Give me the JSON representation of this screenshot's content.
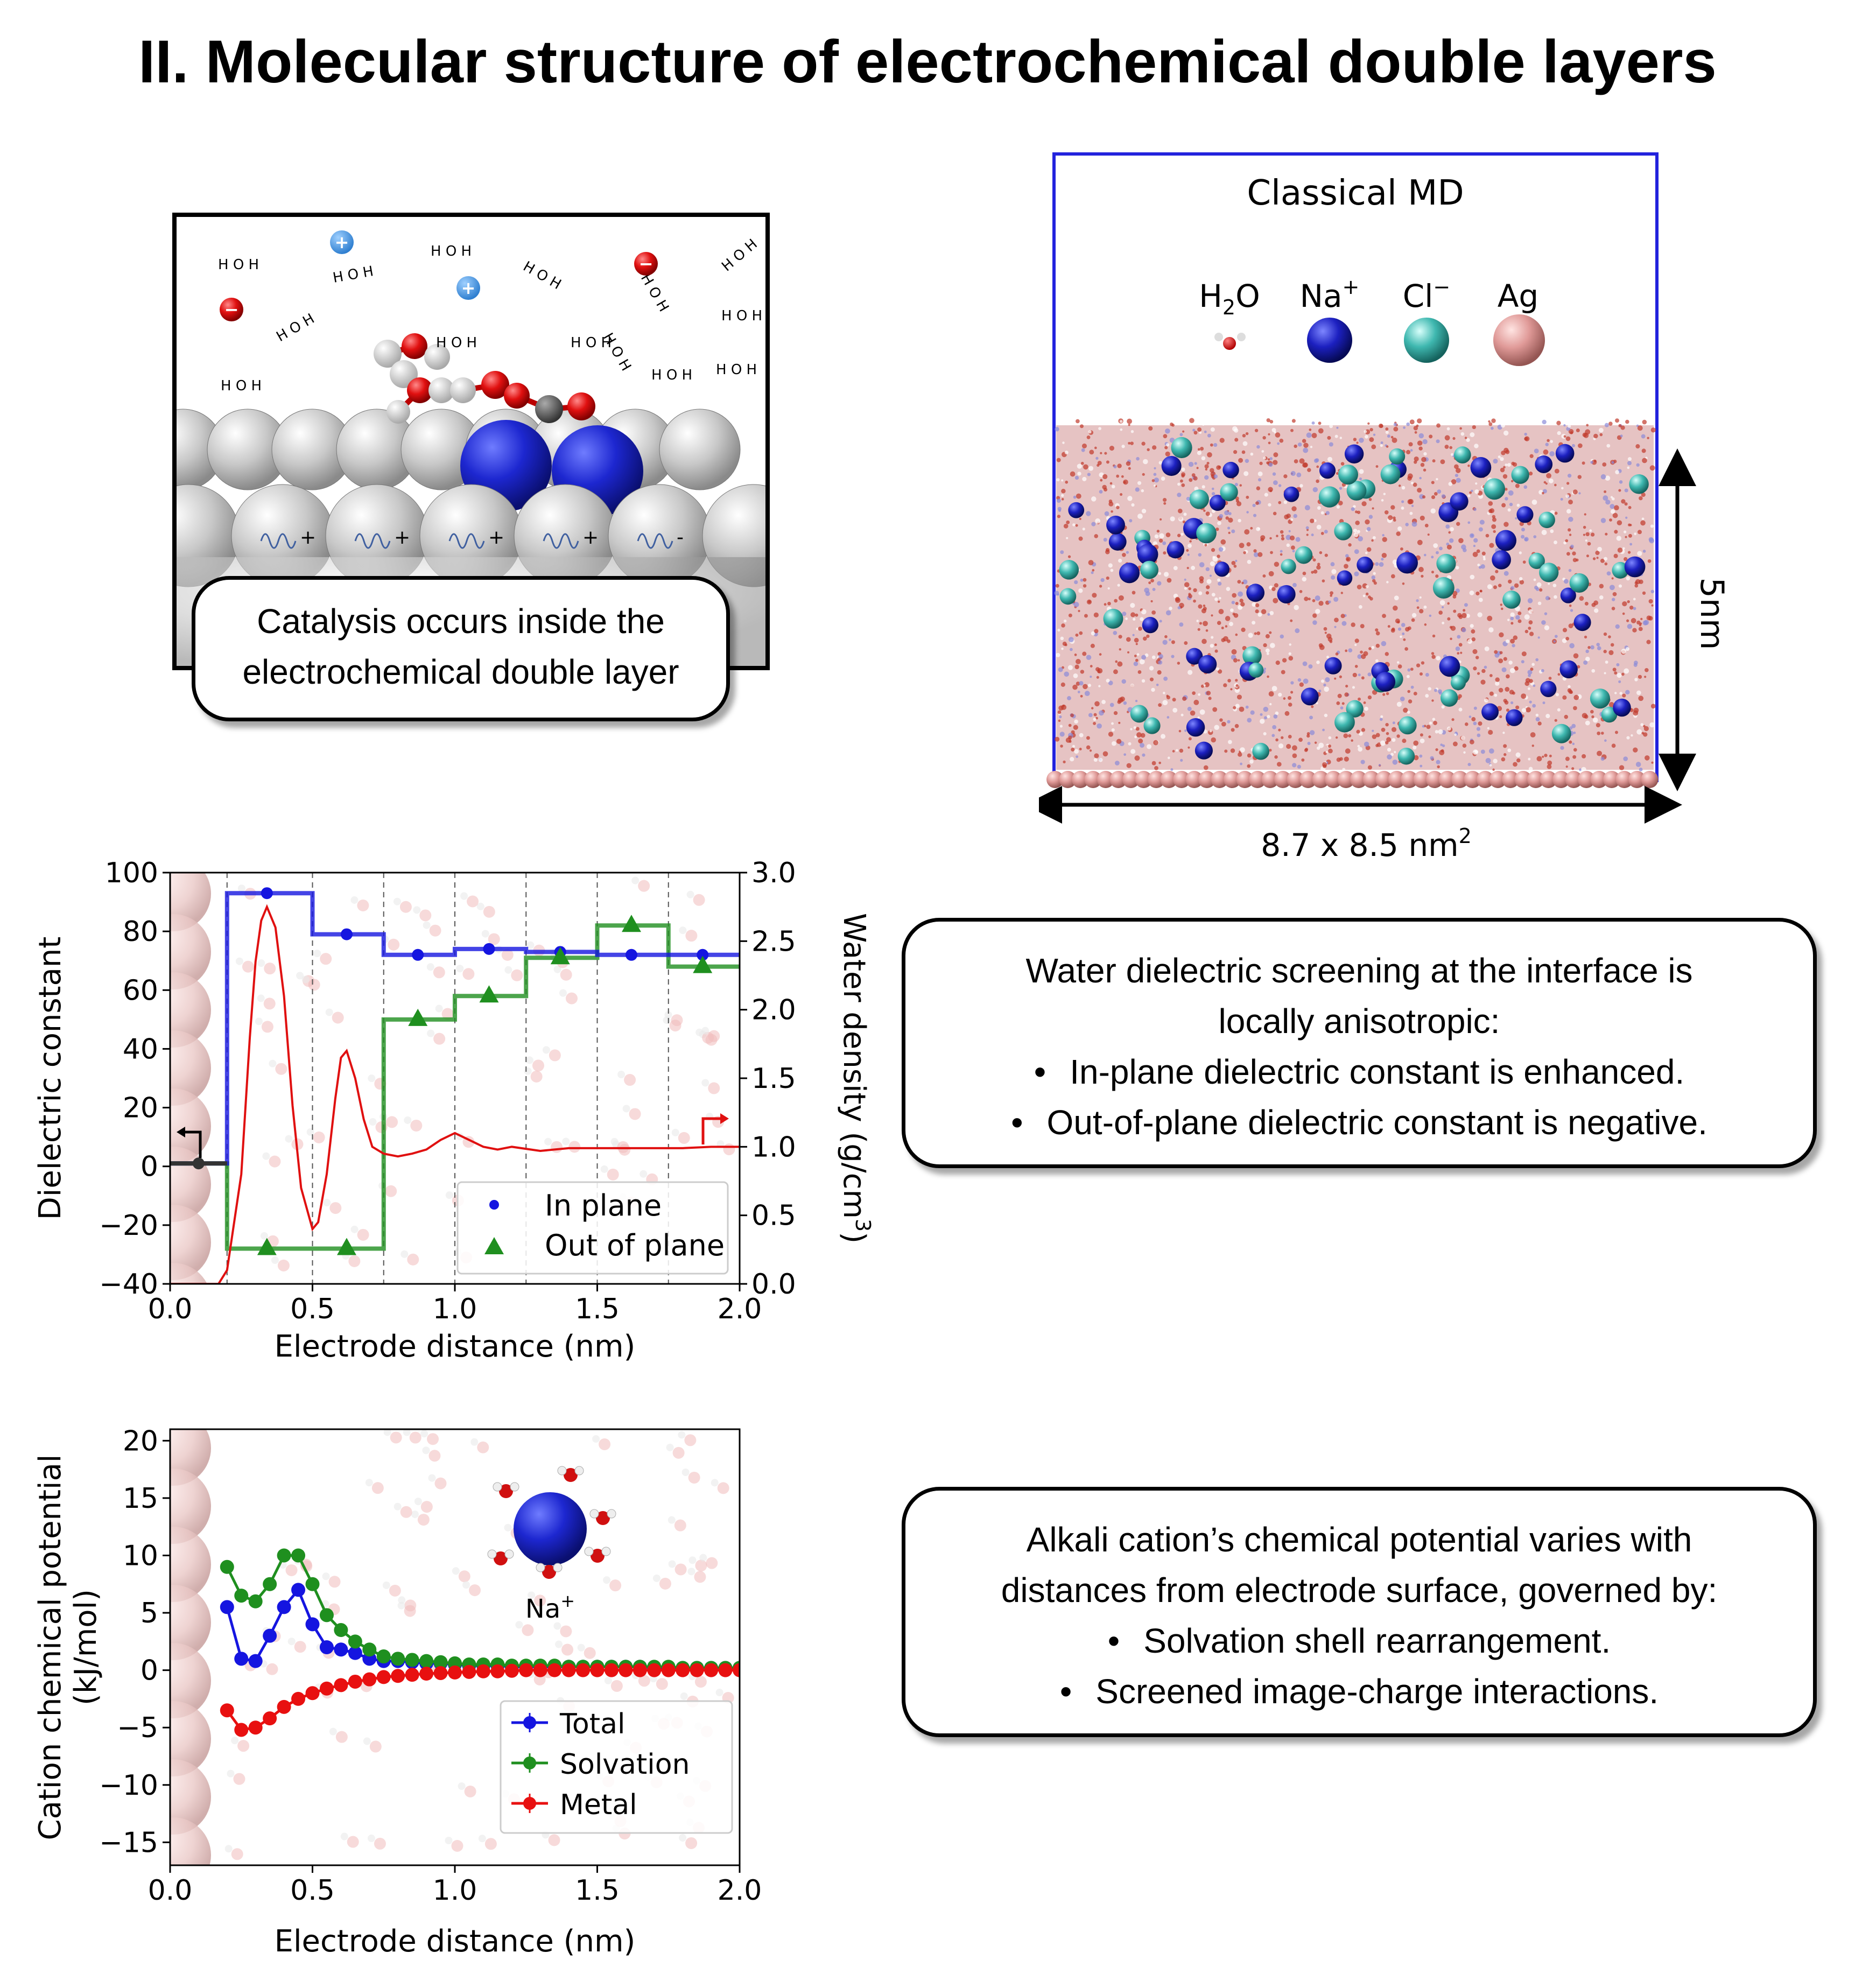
{
  "title": "II. Molecular structure of electrochemical double layers",
  "colors": {
    "in_plane": "#1515e0",
    "out_of_plane": "#1f8f1f",
    "density": "#e01010",
    "total": "#1515e0",
    "solvation": "#1f8f1f",
    "metal": "#e81010",
    "na": "#1c20c0",
    "cl": "#3fb8b0",
    "ag": "#e09a98",
    "box": "#2222dd"
  },
  "catalysis_panel": {
    "callout_text": [
      "Catalysis occurs inside the",
      "electrochemical double layer"
    ]
  },
  "md_panel": {
    "title": "Classical MD",
    "legend": [
      {
        "label": "H",
        "sub": "2",
        "tail": "O",
        "icon": "water"
      },
      {
        "label": "Na",
        "sup": "+",
        "icon": "na-sphere"
      },
      {
        "label": "Cl",
        "sup": "−",
        "icon": "cl-sphere"
      },
      {
        "label": "Ag",
        "icon": "ag-sphere"
      }
    ],
    "height_label": "5nm",
    "area_label": "8.7 x 8.5 nm",
    "area_sup": "2"
  },
  "chart_data": [
    {
      "type": "line",
      "xlabel": "Electrode distance (nm)",
      "ylabel": "Dielectric constant",
      "y2label": "Water density (g/cm",
      "y2label_sup": "3",
      "y2label_tail": ")",
      "xlim": [
        0.0,
        2.0
      ],
      "ylim": [
        -40,
        100
      ],
      "y2lim": [
        0.0,
        3.0
      ],
      "x_ticks": [
        "0.0",
        "0.5",
        "1.0",
        "1.5",
        "2.0"
      ],
      "y_ticks": [
        "100",
        "80",
        "60",
        "40",
        "20",
        "0",
        "−20",
        "−40"
      ],
      "y2_ticks": [
        "3.0",
        "2.5",
        "2.0",
        "1.5",
        "1.0",
        "0.5",
        "0.0"
      ],
      "step_edges": [
        0.0,
        0.2,
        0.5,
        0.75,
        1.0,
        1.25,
        1.5,
        1.75,
        2.0
      ],
      "series": [
        {
          "name": "In plane",
          "marker": "circle",
          "step_values": [
            1,
            93,
            79,
            72,
            74,
            73,
            72,
            72
          ],
          "points": [
            [
              0.1,
              1
            ],
            [
              0.34,
              93
            ],
            [
              0.62,
              79
            ],
            [
              0.87,
              72
            ],
            [
              1.12,
              74
            ],
            [
              1.37,
              73
            ],
            [
              1.62,
              72
            ],
            [
              1.87,
              72
            ]
          ]
        },
        {
          "name": "Out of plane",
          "marker": "triangle",
          "step_values": [
            1,
            -28,
            -28,
            50,
            58,
            71,
            82,
            68
          ],
          "points": [
            [
              0.34,
              -28
            ],
            [
              0.62,
              -28
            ],
            [
              0.87,
              50
            ],
            [
              1.12,
              58
            ],
            [
              1.37,
              71
            ],
            [
              1.62,
              82
            ],
            [
              1.87,
              68
            ]
          ]
        },
        {
          "axis": "right",
          "x": [
            0.0,
            0.17,
            0.2,
            0.25,
            0.28,
            0.3,
            0.32,
            0.34,
            0.37,
            0.4,
            0.43,
            0.46,
            0.5,
            0.52,
            0.55,
            0.58,
            0.6,
            0.62,
            0.65,
            0.68,
            0.71,
            0.75,
            0.8,
            0.85,
            0.9,
            0.95,
            1.0,
            1.05,
            1.1,
            1.15,
            1.2,
            1.3,
            1.4,
            1.5,
            1.6,
            1.7,
            1.8,
            1.9,
            2.0
          ],
          "y": [
            0.0,
            0.0,
            0.1,
            0.8,
            1.8,
            2.35,
            2.65,
            2.75,
            2.6,
            2.1,
            1.3,
            0.7,
            0.4,
            0.45,
            0.8,
            1.35,
            1.65,
            1.7,
            1.5,
            1.2,
            1.0,
            0.95,
            0.93,
            0.95,
            0.98,
            1.05,
            1.1,
            1.05,
            1.0,
            0.98,
            1.0,
            0.97,
            0.99,
            0.99,
            0.99,
            0.99,
            0.99,
            1.0,
            1.0
          ]
        }
      ],
      "legend_position": "lower-right"
    },
    {
      "type": "line",
      "xlabel": "Electrode distance (nm)",
      "ylabel": "Cation chemical potential",
      "ylabel2": "(kJ/mol)",
      "xlim": [
        0.0,
        2.0
      ],
      "ylim": [
        -17,
        21
      ],
      "x_ticks": [
        "0.0",
        "0.5",
        "1.0",
        "1.5",
        "2.0"
      ],
      "y_ticks": [
        "20",
        "15",
        "10",
        "5",
        "0",
        "−5",
        "−10",
        "−15"
      ],
      "inset_label": "Na",
      "inset_sup": "+",
      "x": [
        0.2,
        0.25,
        0.3,
        0.35,
        0.4,
        0.45,
        0.5,
        0.55,
        0.6,
        0.65,
        0.7,
        0.75,
        0.8,
        0.85,
        0.9,
        0.95,
        1.0,
        1.05,
        1.1,
        1.15,
        1.2,
        1.25,
        1.3,
        1.35,
        1.4,
        1.45,
        1.5,
        1.55,
        1.6,
        1.65,
        1.7,
        1.75,
        1.8,
        1.85,
        1.9,
        1.95,
        2.0
      ],
      "series": [
        {
          "name": "Total",
          "values": [
            5.5,
            1.0,
            0.8,
            3.0,
            5.5,
            7.0,
            4.0,
            2.0,
            1.8,
            1.5,
            1.0,
            0.8,
            0.8,
            0.7,
            0.6,
            0.6,
            0.5,
            0.4,
            0.4,
            0.4,
            0.3,
            0.3,
            0.3,
            0.3,
            0.3,
            0.3,
            0.3,
            0.3,
            0.3,
            0.3,
            0.2,
            0.2,
            0.2,
            0.2,
            0.2,
            0.2,
            0.2
          ]
        },
        {
          "name": "Solvation",
          "values": [
            9.0,
            6.5,
            6.0,
            7.5,
            10.0,
            10.0,
            7.5,
            4.8,
            3.5,
            2.5,
            1.8,
            1.2,
            1.0,
            0.9,
            0.8,
            0.7,
            0.6,
            0.5,
            0.5,
            0.5,
            0.4,
            0.4,
            0.4,
            0.4,
            0.3,
            0.3,
            0.3,
            0.3,
            0.3,
            0.3,
            0.3,
            0.3,
            0.2,
            0.2,
            0.2,
            0.2,
            0.2
          ]
        },
        {
          "name": "Metal",
          "values": [
            -3.5,
            -5.2,
            -5.0,
            -4.2,
            -3.2,
            -2.5,
            -2.0,
            -1.6,
            -1.3,
            -1.0,
            -0.8,
            -0.6,
            -0.5,
            -0.4,
            -0.3,
            -0.25,
            -0.2,
            -0.15,
            -0.1,
            -0.1,
            -0.05,
            0,
            0,
            0,
            0,
            0,
            0,
            0,
            0,
            0,
            0,
            0,
            0,
            0,
            0,
            0,
            0
          ]
        }
      ],
      "legend_position": "lower-right"
    }
  ],
  "dielectric_callout": {
    "lines": [
      "Water dielectric screening at the interface is",
      "locally anisotropic:"
    ],
    "bullets": [
      "In-plane dielectric constant is enhanced.",
      "Out-of-plane dielectric constant is negative."
    ]
  },
  "potential_callout": {
    "lines": [
      "Alkali cation’s chemical potential varies with",
      "distances from electrode surface, governed by:"
    ],
    "bullets": [
      "Solvation shell rearrangement.",
      "Screened image-charge interactions."
    ]
  }
}
